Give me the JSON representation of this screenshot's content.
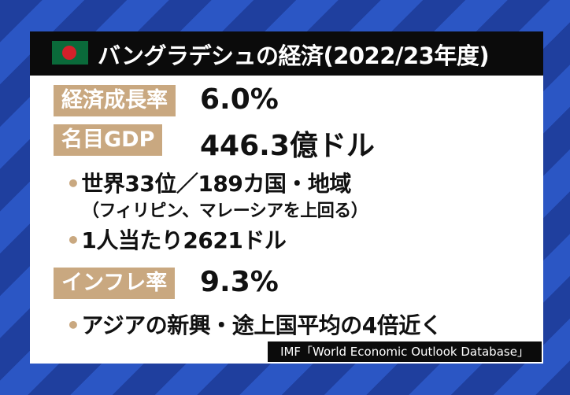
{
  "header": {
    "title": "バングラデシュの経済(2022/23年度)"
  },
  "rows": [
    {
      "label": "経済成長率",
      "value": "6.0%"
    },
    {
      "label": "名目GDP",
      "value": "446.3億ドル"
    },
    {
      "label": "インフレ率",
      "value": "9.3%"
    }
  ],
  "notes": {
    "gdp_rank": "世界33位／189カ国・地域",
    "gdp_rank_sub": "（フィリピン、マレーシアを上回る）",
    "gdp_per_capita": "1人当たり2621ドル",
    "inflation": "アジアの新興・途上国平均の4倍近く"
  },
  "source": "IMF「World Economic Outlook Database」"
}
